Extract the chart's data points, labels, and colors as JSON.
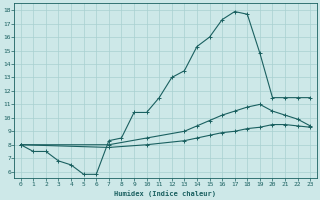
{
  "xlabel": "Humidex (Indice chaleur)",
  "bg_color": "#cde8e8",
  "grid_color": "#a8d0d0",
  "line_color": "#1a6060",
  "xlim": [
    -0.5,
    23.5
  ],
  "ylim": [
    5.5,
    18.5
  ],
  "xticks": [
    0,
    1,
    2,
    3,
    4,
    5,
    6,
    7,
    8,
    9,
    10,
    11,
    12,
    13,
    14,
    15,
    16,
    17,
    18,
    19,
    20,
    21,
    22,
    23
  ],
  "yticks": [
    6,
    7,
    8,
    9,
    10,
    11,
    12,
    13,
    14,
    15,
    16,
    17,
    18
  ],
  "curve1_x": [
    0,
    1,
    2,
    3,
    4,
    5,
    6,
    7,
    8,
    9,
    10,
    11,
    12,
    13,
    14,
    15,
    16,
    17,
    18,
    19,
    20,
    21,
    22,
    23
  ],
  "curve1_y": [
    8.0,
    7.5,
    7.5,
    6.8,
    6.5,
    5.8,
    5.8,
    8.3,
    8.5,
    10.4,
    10.4,
    11.5,
    13.0,
    13.5,
    15.3,
    16.0,
    17.3,
    17.9,
    17.7,
    14.8,
    11.5,
    11.5,
    11.5,
    11.5
  ],
  "curve2_x": [
    0,
    7,
    10,
    13,
    14,
    15,
    16,
    17,
    18,
    19,
    20,
    21,
    22,
    23
  ],
  "curve2_y": [
    8.0,
    8.0,
    8.5,
    9.0,
    9.4,
    9.8,
    10.2,
    10.5,
    10.8,
    11.0,
    10.5,
    10.2,
    9.9,
    9.4
  ],
  "curve3_x": [
    0,
    7,
    10,
    13,
    14,
    15,
    16,
    17,
    18,
    19,
    20,
    21,
    22,
    23
  ],
  "curve3_y": [
    8.0,
    7.8,
    8.0,
    8.3,
    8.5,
    8.7,
    8.9,
    9.0,
    9.2,
    9.3,
    9.5,
    9.5,
    9.4,
    9.3
  ]
}
